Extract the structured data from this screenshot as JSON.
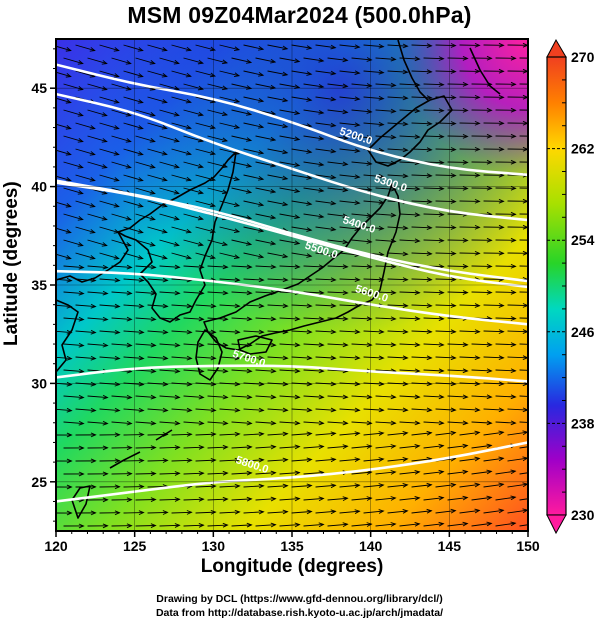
{
  "title": "MSM 09Z04Mar2024 (500.0hPa)",
  "xlabel": "Longitude (degrees)",
  "ylabel": "Latitude  (degrees)",
  "credits": [
    "Drawing by DCL (https://www.gfd-dennou.org/library/dcl/)",
    "Data from http://database.rish.kyoto-u.ac.jp/arch/jmadata/"
  ],
  "map": {
    "lon_range": [
      120,
      150
    ],
    "lat_range": [
      22.5,
      47.5
    ],
    "x_ticks": [
      "120",
      "125",
      "130",
      "135",
      "140",
      "145",
      "150"
    ],
    "y_ticks": [
      "25",
      "30",
      "35",
      "40",
      "45"
    ],
    "grid": true
  },
  "colorbar": {
    "min": 230,
    "max": 270,
    "labels": [
      "270",
      "262",
      "254",
      "246",
      "238",
      "230"
    ],
    "colors": [
      "#ff1a9e",
      "#a000c8",
      "#2828e0",
      "#00a0f0",
      "#00e0a0",
      "#28d428",
      "#a8e000",
      "#ffd800",
      "#ff6000",
      "#f04020"
    ]
  },
  "contours": [
    {
      "label": "5200.0",
      "lat_at_lon": [
        [
          120,
          46.2
        ],
        [
          125,
          45.2
        ],
        [
          130,
          44.5
        ],
        [
          135,
          43.3
        ],
        [
          140,
          41.8
        ],
        [
          145,
          40.9
        ],
        [
          150,
          40.6
        ]
      ]
    },
    {
      "label": "5300.0",
      "lat_at_lon": [
        [
          120,
          44.7
        ],
        [
          125,
          43.8
        ],
        [
          130,
          42.2
        ],
        [
          135,
          40.9
        ],
        [
          140,
          39.6
        ],
        [
          145,
          38.7
        ],
        [
          150,
          38.3
        ]
      ]
    },
    {
      "label": "5400.0",
      "lat_at_lon": [
        [
          120,
          40.3
        ],
        [
          125,
          39.6
        ],
        [
          130,
          38.8
        ],
        [
          135,
          37.6
        ],
        [
          140,
          36.5
        ],
        [
          145,
          35.7
        ],
        [
          150,
          35.2
        ]
      ]
    },
    {
      "label": "5500.0",
      "lat_at_lon": [
        [
          120,
          40.2
        ],
        [
          125,
          39.6
        ],
        [
          130,
          38.6
        ],
        [
          135,
          37.5
        ],
        [
          140,
          36.4
        ],
        [
          145,
          35.4
        ],
        [
          150,
          34.9
        ]
      ]
    },
    {
      "label": "5600.0",
      "lat_at_lon": [
        [
          120,
          35.7
        ],
        [
          125,
          35.6
        ],
        [
          130,
          35.2
        ],
        [
          135,
          34.7
        ],
        [
          140,
          34.0
        ],
        [
          145,
          33.4
        ],
        [
          150,
          33.0
        ]
      ]
    },
    {
      "label": "5700.0",
      "lat_at_lon": [
        [
          120,
          30.3
        ],
        [
          125,
          30.8
        ],
        [
          130,
          30.9
        ],
        [
          135,
          30.9
        ],
        [
          140,
          30.6
        ],
        [
          145,
          30.4
        ],
        [
          150,
          30.1
        ]
      ]
    },
    {
      "label": "5800.0",
      "lat_at_lon": [
        [
          120,
          24.0
        ],
        [
          125,
          24.5
        ],
        [
          130,
          25.0
        ],
        [
          135,
          25.2
        ],
        [
          140,
          25.6
        ],
        [
          145,
          26.2
        ],
        [
          150,
          27.0
        ]
      ]
    }
  ],
  "contour_labels": [
    {
      "text": "5200.0",
      "lon": 139.0,
      "lat": 42.4
    },
    {
      "text": "5300.0",
      "lon": 141.2,
      "lat": 40.0
    },
    {
      "text": "5400.0",
      "lon": 139.2,
      "lat": 37.9
    },
    {
      "text": "5500.0",
      "lon": 136.8,
      "lat": 36.6
    },
    {
      "text": "5600.0",
      "lon": 140.0,
      "lat": 34.4
    },
    {
      "text": "5700.0",
      "lon": 132.2,
      "lat": 31.1
    },
    {
      "text": "5800.0",
      "lon": 132.4,
      "lat": 25.7
    }
  ]
}
